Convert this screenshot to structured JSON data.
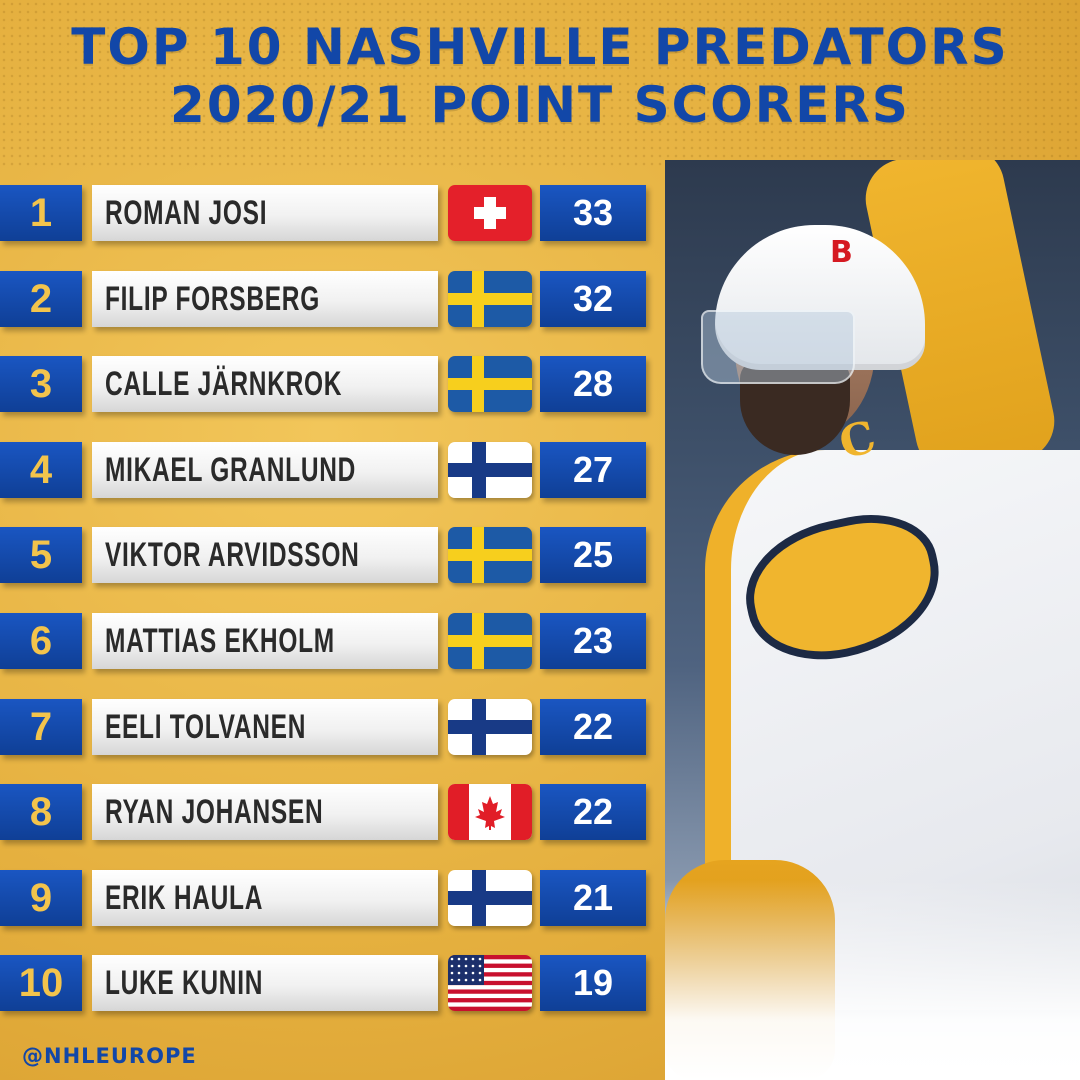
{
  "title": {
    "line1": "TOP 10 NASHVILLE PREDATORS",
    "line2": "2020/21 POINT SCORERS"
  },
  "players": [
    {
      "rank": "1",
      "name": "ROMAN JOSI",
      "flag": "switzerland-flag-icon",
      "points": "33"
    },
    {
      "rank": "2",
      "name": "FILIP FORSBERG",
      "flag": "sweden-flag-icon",
      "points": "32"
    },
    {
      "rank": "3",
      "name": "CALLE JÄRNKROK",
      "flag": "sweden-flag-icon",
      "points": "28"
    },
    {
      "rank": "4",
      "name": "MIKAEL GRANLUND",
      "flag": "finland-flag-icon",
      "points": "27"
    },
    {
      "rank": "5",
      "name": "VIKTOR ARVIDSSON",
      "flag": "sweden-flag-icon",
      "points": "25"
    },
    {
      "rank": "6",
      "name": "MATTIAS EKHOLM",
      "flag": "sweden-flag-icon",
      "points": "23"
    },
    {
      "rank": "7",
      "name": "EELI TOLVANEN",
      "flag": "finland-flag-icon",
      "points": "22"
    },
    {
      "rank": "8",
      "name": "RYAN JOHANSEN",
      "flag": "canada-flag-icon",
      "points": "22"
    },
    {
      "rank": "9",
      "name": "ERIK HAULA",
      "flag": "finland-flag-icon",
      "points": "21"
    },
    {
      "rank": "10",
      "name": "LUKE KUNIN",
      "flag": "usa-flag-icon",
      "points": "19"
    }
  ],
  "footer": {
    "handle": "@NHLEUROPE"
  },
  "colors": {
    "background_gold": "#e5b03f",
    "brand_blue": "#1247a8",
    "rank_text_gold": "#f3c44c"
  }
}
